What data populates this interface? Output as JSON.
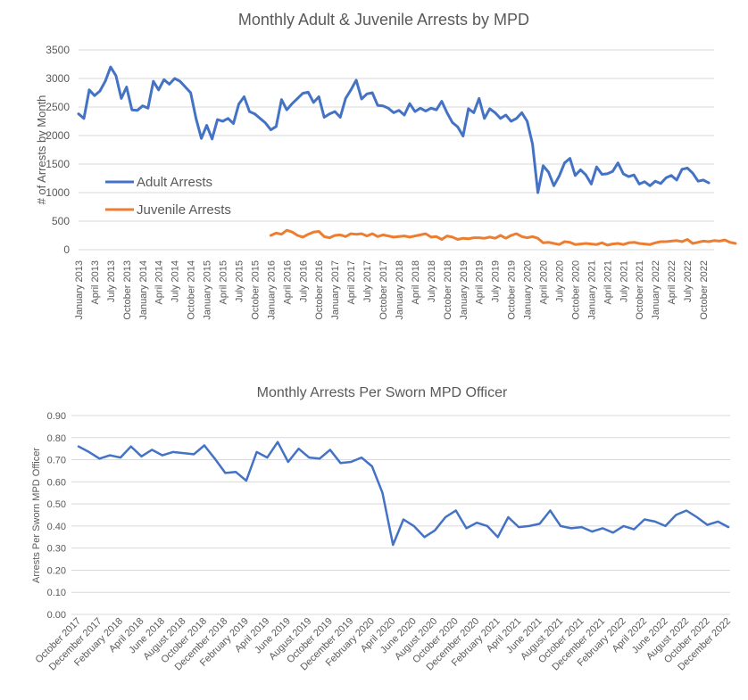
{
  "chart_data": [
    {
      "type": "line",
      "title": "Monthly Adult & Juvenile Arrests by MPD",
      "xlabel": "",
      "ylabel": "# of Arrests by Month",
      "ylim": [
        0,
        3500
      ],
      "yticks": [
        "0",
        "500",
        "1000",
        "1500",
        "2000",
        "2500",
        "3000",
        "3500"
      ],
      "grid": true,
      "legend_position": "left-inside",
      "x_tick_labels": [
        "January 2013",
        "April 2013",
        "July 2013",
        "October 2013",
        "January 2014",
        "April 2014",
        "July 2014",
        "October 2014",
        "January 2015",
        "April 2015",
        "July 2015",
        "October 2015",
        "January 2016",
        "April 2016",
        "July 2016",
        "October 2016",
        "January 2017",
        "April 2017",
        "July 2017",
        "October 2017",
        "January 2018",
        "April 2018",
        "July 2018",
        "October 2018",
        "January 2019",
        "April 2019",
        "July 2019",
        "October 2019",
        "January 2020",
        "April 2020",
        "July 2020",
        "October 2020",
        "January 2021",
        "April 2021",
        "July 2021",
        "October 2021",
        "January 2022",
        "April 2022",
        "July 2022",
        "October 2022"
      ],
      "x_start": "2013-01",
      "series": [
        {
          "name": "Adult Arrests",
          "color": "#4472C4",
          "values": [
            2380,
            2300,
            2800,
            2700,
            2780,
            2950,
            3200,
            3050,
            2650,
            2850,
            2450,
            2440,
            2520,
            2480,
            2950,
            2800,
            2980,
            2900,
            3000,
            2950,
            2850,
            2750,
            2300,
            1950,
            2180,
            1940,
            2280,
            2250,
            2300,
            2210,
            2550,
            2680,
            2420,
            2380,
            2300,
            2220,
            2100,
            2160,
            2630,
            2450,
            2560,
            2650,
            2740,
            2760,
            2580,
            2680,
            2320,
            2380,
            2420,
            2320,
            2650,
            2800,
            2970,
            2640,
            2730,
            2750,
            2530,
            2520,
            2480,
            2400,
            2440,
            2360,
            2560,
            2420,
            2480,
            2430,
            2480,
            2450,
            2600,
            2400,
            2230,
            2150,
            1990,
            2470,
            2400,
            2650,
            2300,
            2470,
            2400,
            2300,
            2360,
            2250,
            2300,
            2400,
            2250,
            1850,
            1000,
            1470,
            1360,
            1120,
            1290,
            1520,
            1600,
            1300,
            1400,
            1310,
            1150,
            1450,
            1320,
            1330,
            1370,
            1520,
            1330,
            1280,
            1310,
            1150,
            1190,
            1120,
            1200,
            1160,
            1260,
            1300,
            1220,
            1410,
            1430,
            1340,
            1200,
            1220,
            1170
          ],
          "start_index": 0
        },
        {
          "name": "Juvenile Arrests",
          "color": "#ED7D31",
          "values": [
            250,
            290,
            270,
            340,
            310,
            250,
            220,
            270,
            310,
            320,
            230,
            210,
            250,
            260,
            230,
            280,
            270,
            280,
            240,
            280,
            230,
            260,
            240,
            220,
            230,
            240,
            220,
            240,
            260,
            280,
            220,
            230,
            180,
            240,
            220,
            180,
            200,
            190,
            210,
            210,
            200,
            220,
            200,
            250,
            200,
            250,
            280,
            230,
            210,
            230,
            200,
            120,
            130,
            110,
            90,
            140,
            130,
            90,
            100,
            110,
            100,
            90,
            120,
            80,
            100,
            110,
            90,
            120,
            130,
            110,
            100,
            90,
            120,
            140,
            140,
            150,
            160,
            140,
            180,
            110,
            130,
            150,
            140,
            160,
            150,
            170,
            130,
            110
          ],
          "start_index": 36
        }
      ]
    },
    {
      "type": "line",
      "title": "Monthly Arrests Per Sworn MPD Officer",
      "xlabel": "",
      "ylabel": "Arrests Per Sworn MPD Officer",
      "ylim": [
        0,
        0.9
      ],
      "yticks": [
        "0.00",
        "0.10",
        "0.20",
        "0.30",
        "0.40",
        "0.50",
        "0.60",
        "0.70",
        "0.80",
        "0.90"
      ],
      "grid": true,
      "x_tick_labels": [
        "October 2017",
        "December 2017",
        "February 2018",
        "April 2018",
        "June 2018",
        "August 2018",
        "October 2018",
        "December 2018",
        "February 2019",
        "April 2019",
        "June 2019",
        "August 2019",
        "October 2019",
        "December 2019",
        "February 2020",
        "April 2020",
        "June 2020",
        "August 2020",
        "October 2020",
        "December 2020",
        "February 2021",
        "April 2021",
        "June 2021",
        "August 2021",
        "October 2021",
        "December 2021",
        "February 2022",
        "April 2022",
        "June 2022",
        "August 2022",
        "October 2022",
        "December 2022"
      ],
      "series": [
        {
          "name": "",
          "color": "#4472C4",
          "values": [
            0.76,
            0.735,
            0.705,
            0.72,
            0.71,
            0.76,
            0.715,
            0.745,
            0.72,
            0.735,
            0.73,
            0.725,
            0.765,
            0.705,
            0.64,
            0.645,
            0.605,
            0.735,
            0.71,
            0.78,
            0.69,
            0.75,
            0.71,
            0.705,
            0.745,
            0.685,
            0.69,
            0.71,
            0.67,
            0.55,
            0.315,
            0.43,
            0.4,
            0.35,
            0.38,
            0.44,
            0.47,
            0.39,
            0.415,
            0.4,
            0.35,
            0.44,
            0.395,
            0.4,
            0.41,
            0.47,
            0.4,
            0.39,
            0.395,
            0.375,
            0.39,
            0.37,
            0.4,
            0.385,
            0.43,
            0.42,
            0.4,
            0.45,
            0.47,
            0.44,
            0.405,
            0.42,
            0.395
          ]
        }
      ]
    }
  ]
}
